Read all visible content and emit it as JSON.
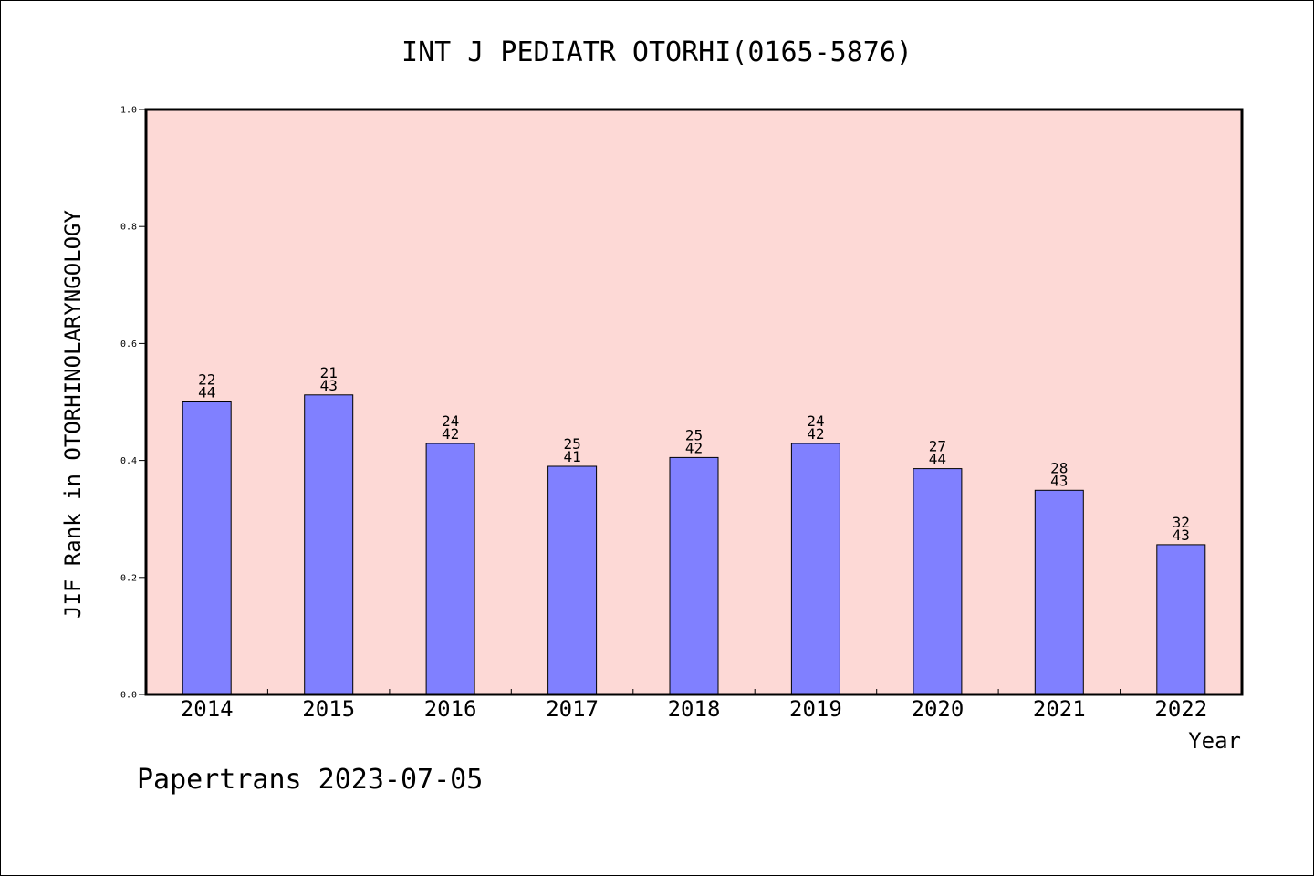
{
  "chart_data": {
    "type": "bar",
    "title": "INT J PEDIATR OTORHI(0165-5876)",
    "xlabel": "Year",
    "ylabel": "JIF Rank in OTORHINOLARYNGOLOGY",
    "ylim": [
      0,
      1.0
    ],
    "yticks": [
      "0.0",
      "0.2",
      "0.4",
      "0.6",
      "0.8",
      "1.0"
    ],
    "grid": false,
    "legend": "none",
    "categories": [
      "2014",
      "2015",
      "2016",
      "2017",
      "2018",
      "2019",
      "2020",
      "2021",
      "2022"
    ],
    "values": [
      0.5,
      0.512,
      0.429,
      0.39,
      0.405,
      0.429,
      0.386,
      0.349,
      0.256
    ],
    "ranks": [
      "22",
      "21",
      "24",
      "25",
      "25",
      "24",
      "27",
      "28",
      "32"
    ],
    "totals": [
      "44",
      "43",
      "42",
      "41",
      "42",
      "42",
      "44",
      "43",
      "43"
    ]
  },
  "footer": "Papertrans 2023-07-05",
  "colors": {
    "plot_background": "#fdd9d6",
    "bar_fill": "#8080ff",
    "bar_stroke": "#000000",
    "frame": "#000000"
  }
}
